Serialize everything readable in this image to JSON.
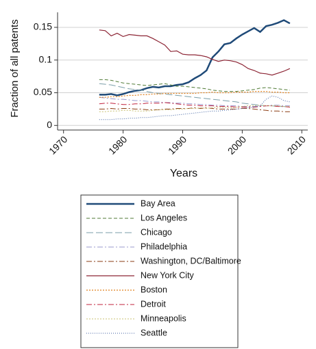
{
  "chart_data": {
    "type": "line",
    "xlabel": "Years",
    "ylabel": "Fraction of all patents",
    "x": [
      1976,
      1977,
      1978,
      1979,
      1980,
      1981,
      1982,
      1983,
      1984,
      1985,
      1986,
      1987,
      1988,
      1989,
      1990,
      1991,
      1992,
      1993,
      1994,
      1995,
      1996,
      1997,
      1998,
      1999,
      2000,
      2001,
      2002,
      2003,
      2004,
      2005,
      2006,
      2007,
      2008
    ],
    "xlim": [
      1969,
      2011
    ],
    "xticks": [
      1970,
      1980,
      1990,
      2000,
      2010
    ],
    "ylim": [
      -0.007,
      0.173
    ],
    "yticks": [
      0,
      0.05,
      0.1,
      0.15
    ],
    "grid": true,
    "series": [
      {
        "name": "Bay Area",
        "color": "#1f4a78",
        "width": 2.5,
        "dash": "none",
        "values": [
          0.047,
          0.047,
          0.048,
          0.046,
          0.048,
          0.051,
          0.053,
          0.054,
          0.057,
          0.059,
          0.058,
          0.06,
          0.06,
          0.062,
          0.063,
          0.066,
          0.072,
          0.077,
          0.084,
          0.104,
          0.113,
          0.124,
          0.126,
          0.133,
          0.139,
          0.144,
          0.149,
          0.143,
          0.152,
          0.154,
          0.157,
          0.161,
          0.156
        ]
      },
      {
        "name": "Los Angeles",
        "color": "#4f7a35",
        "width": 1,
        "dash": "5,3",
        "values": [
          0.07,
          0.07,
          0.069,
          0.067,
          0.065,
          0.064,
          0.063,
          0.062,
          0.061,
          0.062,
          0.063,
          0.064,
          0.062,
          0.06,
          0.06,
          0.059,
          0.058,
          0.057,
          0.056,
          0.054,
          0.053,
          0.052,
          0.052,
          0.052,
          0.053,
          0.054,
          0.055,
          0.057,
          0.058,
          0.057,
          0.056,
          0.055,
          0.054
        ]
      },
      {
        "name": "Chicago",
        "color": "#7a9ea8",
        "width": 1,
        "dash": "10,4",
        "values": [
          0.064,
          0.063,
          0.062,
          0.06,
          0.058,
          0.056,
          0.055,
          0.054,
          0.052,
          0.05,
          0.049,
          0.048,
          0.047,
          0.046,
          0.045,
          0.044,
          0.043,
          0.042,
          0.041,
          0.04,
          0.039,
          0.038,
          0.037,
          0.036,
          0.034,
          0.033,
          0.032,
          0.031,
          0.03,
          0.03,
          0.029,
          0.029,
          0.028
        ]
      },
      {
        "name": "Philadelphia",
        "color": "#9a98cc",
        "width": 1,
        "dash": "8,3,2,3",
        "values": [
          0.043,
          0.042,
          0.041,
          0.04,
          0.04,
          0.039,
          0.038,
          0.038,
          0.037,
          0.036,
          0.036,
          0.035,
          0.035,
          0.034,
          0.034,
          0.033,
          0.033,
          0.032,
          0.032,
          0.031,
          0.031,
          0.03,
          0.03,
          0.03,
          0.029,
          0.029,
          0.029,
          0.03,
          0.03,
          0.031,
          0.031,
          0.03,
          0.03
        ]
      },
      {
        "name": "Washington, DC/Baltimore",
        "color": "#8a3a10",
        "width": 1,
        "dash": "8,3,2,3",
        "values": [
          0.025,
          0.025,
          0.026,
          0.025,
          0.026,
          0.026,
          0.025,
          0.025,
          0.024,
          0.024,
          0.024,
          0.025,
          0.025,
          0.026,
          0.026,
          0.026,
          0.027,
          0.026,
          0.027,
          0.026,
          0.025,
          0.025,
          0.025,
          0.025,
          0.026,
          0.026,
          0.025,
          0.024,
          0.023,
          0.022,
          0.022,
          0.021,
          0.021
        ]
      },
      {
        "name": "New York City",
        "color": "#8c2434",
        "width": 1.2,
        "dash": "none",
        "values": [
          0.146,
          0.145,
          0.137,
          0.141,
          0.136,
          0.139,
          0.138,
          0.137,
          0.137,
          0.133,
          0.128,
          0.123,
          0.113,
          0.114,
          0.109,
          0.108,
          0.108,
          0.107,
          0.105,
          0.101,
          0.098,
          0.1,
          0.099,
          0.097,
          0.093,
          0.087,
          0.084,
          0.08,
          0.079,
          0.077,
          0.08,
          0.083,
          0.087
        ]
      },
      {
        "name": "Boston",
        "color": "#e0801c",
        "width": 1.2,
        "dash": "2,2",
        "values": [
          0.043,
          0.043,
          0.044,
          0.044,
          0.045,
          0.046,
          0.046,
          0.047,
          0.047,
          0.048,
          0.048,
          0.049,
          0.049,
          0.049,
          0.049,
          0.049,
          0.049,
          0.05,
          0.05,
          0.051,
          0.05,
          0.05,
          0.05,
          0.051,
          0.051,
          0.051,
          0.052,
          0.052,
          0.052,
          0.051,
          0.051,
          0.05,
          0.05
        ]
      },
      {
        "name": "Detroit",
        "color": "#c0203c",
        "width": 1,
        "dash": "8,3,2,3",
        "values": [
          0.033,
          0.034,
          0.034,
          0.033,
          0.032,
          0.032,
          0.033,
          0.033,
          0.034,
          0.034,
          0.034,
          0.035,
          0.034,
          0.033,
          0.032,
          0.031,
          0.031,
          0.03,
          0.03,
          0.03,
          0.029,
          0.029,
          0.029,
          0.028,
          0.028,
          0.028,
          0.028,
          0.029,
          0.03,
          0.03,
          0.029,
          0.029,
          0.028
        ]
      },
      {
        "name": "Minneapolis",
        "color": "#c8c070",
        "width": 1,
        "dash": "2,2",
        "values": [
          0.021,
          0.021,
          0.022,
          0.022,
          0.023,
          0.023,
          0.022,
          0.022,
          0.022,
          0.023,
          0.024,
          0.024,
          0.024,
          0.025,
          0.025,
          0.026,
          0.026,
          0.027,
          0.026,
          0.027,
          0.028,
          0.028,
          0.027,
          0.028,
          0.029,
          0.03,
          0.03,
          0.031,
          0.03,
          0.03,
          0.03,
          0.029,
          0.029
        ]
      },
      {
        "name": "Seattle",
        "color": "#3c5ea0",
        "width": 1,
        "dash": "1,2",
        "values": [
          0.009,
          0.009,
          0.009,
          0.01,
          0.01,
          0.011,
          0.011,
          0.012,
          0.012,
          0.013,
          0.014,
          0.015,
          0.015,
          0.016,
          0.017,
          0.018,
          0.019,
          0.02,
          0.021,
          0.022,
          0.022,
          0.023,
          0.024,
          0.025,
          0.026,
          0.027,
          0.028,
          0.03,
          0.04,
          0.045,
          0.043,
          0.038,
          0.036
        ]
      }
    ]
  }
}
